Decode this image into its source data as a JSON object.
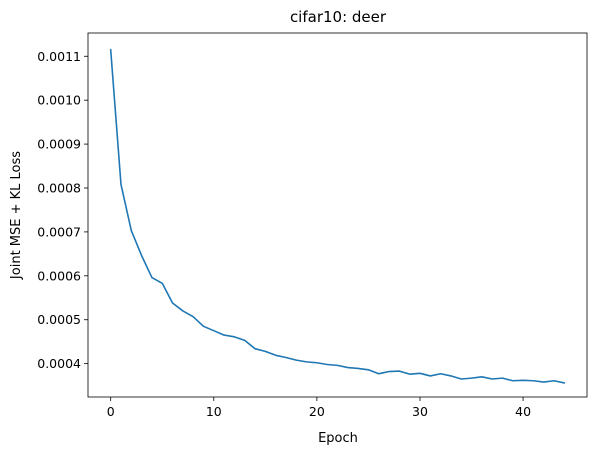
{
  "chart_data": {
    "type": "line",
    "title": "cifar10: deer",
    "xlabel": "Epoch",
    "ylabel": "Joint MSE + KL Loss",
    "grid": false,
    "xlim": [
      -2.2,
      46.2
    ],
    "ylim": [
      0.000324,
      0.001153
    ],
    "xticks": [
      0,
      10,
      20,
      30,
      40
    ],
    "xtick_labels": [
      "0",
      "10",
      "20",
      "30",
      "40"
    ],
    "yticks": [
      0.0004,
      0.0005,
      0.0006,
      0.0007,
      0.0008,
      0.0009,
      0.001,
      0.0011
    ],
    "ytick_labels": [
      "0.0004",
      "0.0005",
      "0.0006",
      "0.0007",
      "0.0008",
      "0.0009",
      "0.0010",
      "0.0011"
    ],
    "series": [
      {
        "color": "#1f77b4",
        "x": [
          0,
          1,
          2,
          3,
          4,
          5,
          6,
          7,
          8,
          9,
          10,
          11,
          12,
          13,
          14,
          15,
          16,
          17,
          18,
          19,
          20,
          21,
          22,
          23,
          24,
          25,
          26,
          27,
          28,
          29,
          30,
          31,
          32,
          33,
          34,
          35,
          36,
          37,
          38,
          39,
          40,
          41,
          42,
          43,
          44
        ],
        "y": [
          0.001115,
          0.000808,
          0.000703,
          0.000646,
          0.000596,
          0.000583,
          0.000538,
          0.00052,
          0.000507,
          0.000485,
          0.000475,
          0.000465,
          0.000461,
          0.000453,
          0.000434,
          0.000428,
          0.000419,
          0.000414,
          0.000408,
          0.000404,
          0.000402,
          0.000398,
          0.000396,
          0.000391,
          0.000389,
          0.000386,
          0.000377,
          0.000382,
          0.000383,
          0.000376,
          0.000378,
          0.000372,
          0.000377,
          0.000372,
          0.000365,
          0.000367,
          0.00037,
          0.000365,
          0.000367,
          0.000361,
          0.000362,
          0.000361,
          0.000358,
          0.000361,
          0.000356
        ]
      }
    ]
  }
}
